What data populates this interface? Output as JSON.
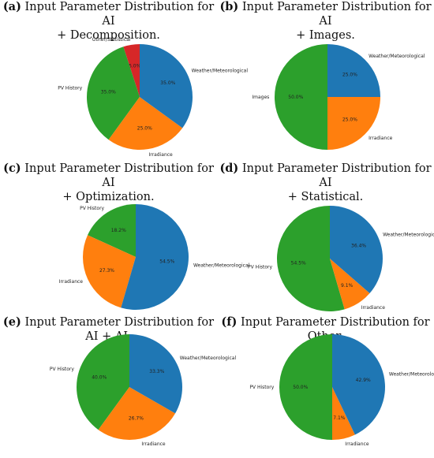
{
  "colors": {
    "PV History": "#2ca02c",
    "Weather/Meteorological": "#1f77b4",
    "Irradiance": "#ff7f0e",
    "Images": "#2ca02c",
    "Other/Statistical": "#d62728"
  },
  "chart_data": [
    {
      "type": "pie",
      "id": "a",
      "title_prefix": "(a)",
      "title_line1": " Input Parameter Distribution for AI",
      "title_line2": "+ Decomposition.",
      "slices": [
        {
          "label": "Other/Statistical",
          "value": 5.0,
          "pct_label": "5.0%"
        },
        {
          "label": "PV History",
          "value": 35.0,
          "pct_label": "35.0%"
        },
        {
          "label": "Irradiance",
          "value": 25.0,
          "pct_label": "25.0%"
        },
        {
          "label": "Weather/Meteorological",
          "value": 35.0,
          "pct_label": "35.0%"
        }
      ]
    },
    {
      "type": "pie",
      "id": "b",
      "title_prefix": "(b)",
      "title_line1": " Input Parameter Distribution for AI",
      "title_line2": "+ Images.",
      "slices": [
        {
          "label": "Images",
          "value": 50.0,
          "pct_label": "50.0%"
        },
        {
          "label": "Irradiance",
          "value": 25.0,
          "pct_label": "25.0%"
        },
        {
          "label": "Weather/Meteorological",
          "value": 25.0,
          "pct_label": "25.0%"
        }
      ]
    },
    {
      "type": "pie",
      "id": "c",
      "title_prefix": "(c)",
      "title_line1": " Input Parameter Distribution for AI",
      "title_line2": "+ Optimization.",
      "slices": [
        {
          "label": "PV History",
          "value": 18.2,
          "pct_label": "18.2%"
        },
        {
          "label": "Irradiance",
          "value": 27.3,
          "pct_label": "27.3%"
        },
        {
          "label": "Weather/Meteorological",
          "value": 54.5,
          "pct_label": "54.5%"
        }
      ]
    },
    {
      "type": "pie",
      "id": "d",
      "title_prefix": "(d)",
      "title_line1": " Input Parameter Distribution for AI",
      "title_line2": "+ Statistical.",
      "slices": [
        {
          "label": "PV History",
          "value": 54.5,
          "pct_label": "54.5%"
        },
        {
          "label": "Irradiance",
          "value": 9.1,
          "pct_label": "9.1%"
        },
        {
          "label": "Weather/Meteorological",
          "value": 36.4,
          "pct_label": "36.4%"
        }
      ]
    },
    {
      "type": "pie",
      "id": "e",
      "title_prefix": "(e)",
      "title_line1": " Input Parameter Distribution for AI + AI.",
      "title_line2": "",
      "slices": [
        {
          "label": "PV History",
          "value": 40.0,
          "pct_label": "40.0%"
        },
        {
          "label": "Irradiance",
          "value": 26.7,
          "pct_label": "26.7%"
        },
        {
          "label": "Weather/Meteorological",
          "value": 33.3,
          "pct_label": "33.3%"
        }
      ]
    },
    {
      "type": "pie",
      "id": "f",
      "title_prefix": "(f)",
      "title_line1": " Input Parameter Distribution for Other.",
      "title_line2": "",
      "slices": [
        {
          "label": "PV History",
          "value": 50.0,
          "pct_label": "50.0%"
        },
        {
          "label": "Irradiance",
          "value": 7.1,
          "pct_label": "7.1%"
        },
        {
          "label": "Weather/Meteorological",
          "value": 42.9,
          "pct_label": "42.9%"
        }
      ]
    }
  ]
}
